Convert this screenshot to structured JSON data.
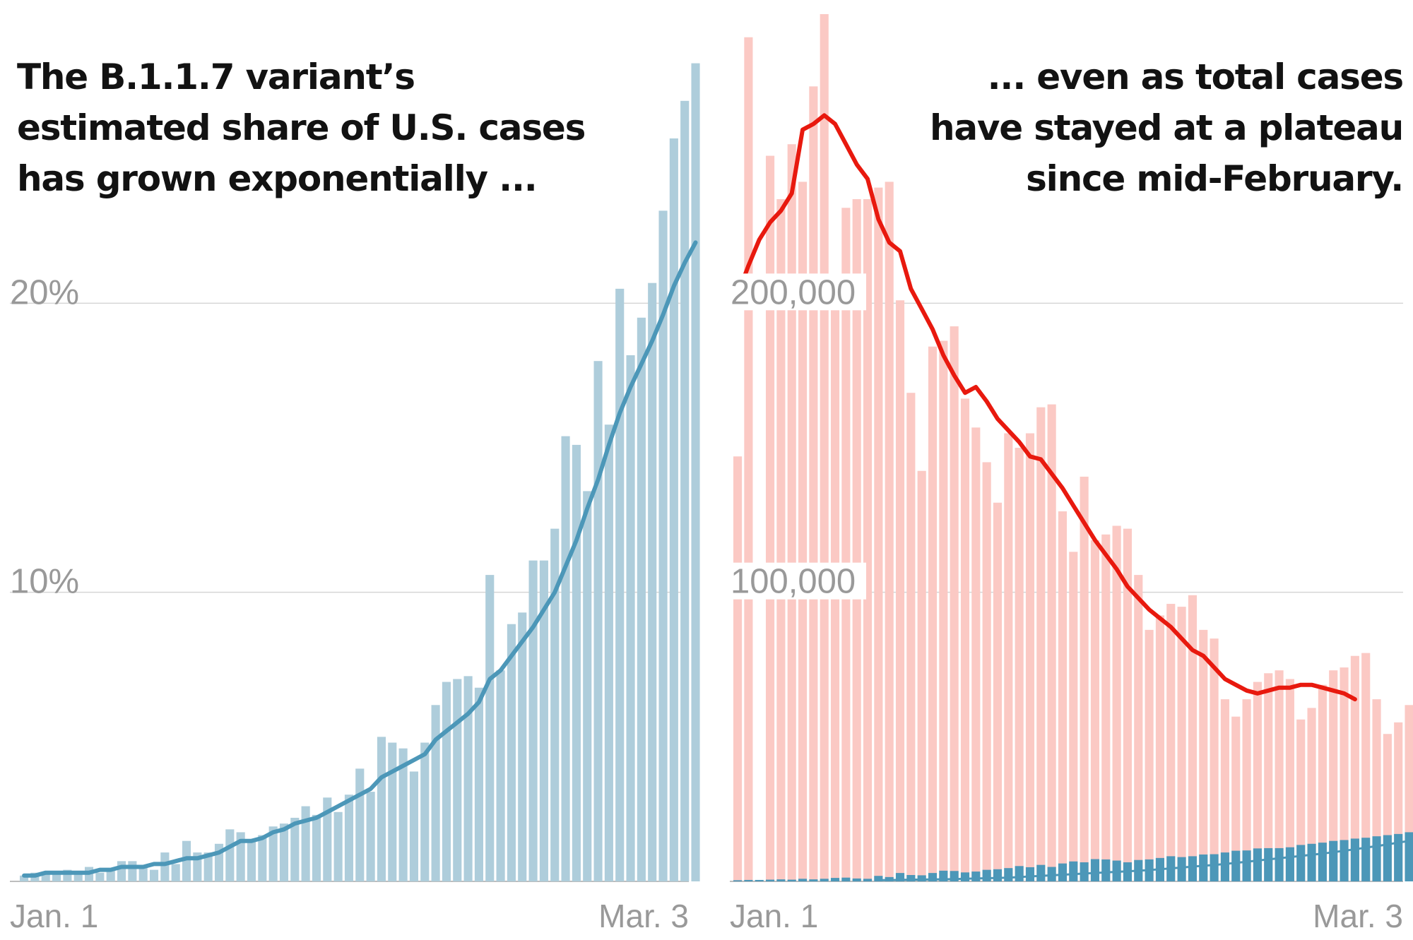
{
  "chart_data": [
    {
      "type": "bar",
      "title": [
        "The B.1.1.7 variant’s",
        "estimated share of U.S. cases",
        "has grown exponentially ..."
      ],
      "y_tick_labels": [
        "10%",
        "20%"
      ],
      "y_ticks": [
        10,
        20
      ],
      "ylim": [
        0,
        30
      ],
      "x_tick_labels": [
        "Jan. 1",
        "Mar. 3"
      ],
      "grid": true,
      "colors": {
        "bars": "#aecddb",
        "line": "#4c97b8"
      },
      "series": [
        {
          "kind": "bar",
          "values": [
            0.2,
            0.3,
            0.3,
            0.3,
            0.4,
            0.3,
            0.5,
            0.3,
            0.4,
            0.7,
            0.7,
            0.5,
            0.4,
            1.0,
            0.6,
            1.4,
            1.0,
            1.0,
            1.3,
            1.8,
            1.7,
            1.4,
            1.6,
            1.9,
            2.0,
            2.2,
            2.6,
            2.3,
            2.9,
            2.4,
            3.0,
            3.9,
            3.1,
            5.0,
            4.8,
            4.6,
            3.8,
            4.8,
            6.1,
            6.9,
            7.0,
            7.1,
            6.7,
            10.6,
            7.3,
            8.9,
            9.3,
            11.1,
            11.1,
            12.2,
            15.4,
            15.1,
            13.5,
            18.0,
            15.8,
            20.5,
            18.2,
            19.5,
            20.7,
            23.2,
            25.7,
            27.0,
            28.3
          ],
          "cap_value": 28.3
        },
        {
          "kind": "line",
          "values": [
            0.2,
            0.2,
            0.3,
            0.3,
            0.3,
            0.3,
            0.3,
            0.4,
            0.4,
            0.5,
            0.5,
            0.5,
            0.6,
            0.6,
            0.7,
            0.8,
            0.8,
            0.9,
            1.0,
            1.2,
            1.4,
            1.4,
            1.5,
            1.7,
            1.8,
            2.0,
            2.1,
            2.2,
            2.4,
            2.6,
            2.8,
            3.0,
            3.2,
            3.6,
            3.8,
            4.0,
            4.2,
            4.4,
            4.9,
            5.2,
            5.5,
            5.8,
            6.2,
            7.0,
            7.3,
            7.8,
            8.3,
            8.8,
            9.4,
            10.0,
            10.9,
            11.8,
            12.9,
            13.9,
            15.1,
            16.2,
            17.1,
            17.9,
            18.7,
            19.6,
            20.6,
            21.4,
            22.1
          ]
        }
      ]
    },
    {
      "type": "bar",
      "title": [
        "... even as total cases",
        "have stayed at a plateau",
        "since mid-February."
      ],
      "y_tick_labels": [
        "100,000",
        "200,000"
      ],
      "y_ticks": [
        100000,
        200000
      ],
      "ylim": [
        0,
        300000
      ],
      "x_tick_labels": [
        "Jan. 1",
        "Mar. 3"
      ],
      "grid": true,
      "colors": {
        "total_bars": "#fbc9c4",
        "average_line": "#e8190e",
        "variant_bars": "#4c97b8"
      },
      "series": [
        {
          "kind": "bar",
          "values": [
            147000,
            292000,
            0,
            251000,
            236000,
            255000,
            242000,
            275000,
            303000,
            210000,
            233000,
            236000,
            236000,
            240000,
            242000,
            201000,
            169000,
            142000,
            185000,
            187000,
            192000,
            167000,
            157000,
            145000,
            131000,
            155000,
            150000,
            155000,
            164000,
            165000,
            128000,
            114000,
            140000,
            118000,
            120000,
            123000,
            122000,
            106000,
            87000,
            92000,
            96000,
            95000,
            99000,
            87000,
            84000,
            63000,
            57000,
            63000,
            69000,
            72000,
            73000,
            70000,
            56000,
            60000,
            68000,
            73000,
            74000,
            78000,
            79000,
            63000,
            51000,
            55000,
            61000,
            62000,
            66000
          ]
        },
        {
          "kind": "line",
          "values": [
            203000,
            213000,
            222000,
            228000,
            232000,
            238000,
            260000,
            262000,
            265000,
            262000,
            255000,
            248000,
            243000,
            229000,
            221000,
            218000,
            205000,
            198000,
            191000,
            182000,
            175000,
            169000,
            171000,
            166000,
            160000,
            156000,
            152000,
            147000,
            146000,
            141000,
            136000,
            130000,
            124000,
            118000,
            113000,
            108000,
            102000,
            98000,
            94000,
            91000,
            88000,
            84000,
            80000,
            78000,
            74000,
            70000,
            68000,
            66000,
            65000,
            66000,
            67000,
            67000,
            68000,
            68000,
            67000,
            66000,
            65000,
            63000
          ]
        },
        {
          "kind": "bar",
          "values": [
            400,
            500,
            500,
            600,
            700,
            600,
            900,
            700,
            900,
            1200,
            1300,
            1000,
            900,
            1900,
            1500,
            2900,
            2200,
            2100,
            2900,
            3700,
            3600,
            3100,
            3400,
            4000,
            4200,
            4600,
            5300,
            4900,
            5700,
            5000,
            6200,
            6900,
            6600,
            7700,
            7600,
            7200,
            6600,
            7400,
            7600,
            8100,
            8700,
            8400,
            8700,
            9300,
            9400,
            10000,
            10600,
            10700,
            11400,
            11500,
            11500,
            11800,
            12600,
            13000,
            13400,
            14000,
            14300,
            14800,
            15100,
            15600,
            16000,
            16400,
            17000
          ]
        },
        {
          "kind": "line",
          "values": [
            400,
            500,
            500,
            600,
            600,
            700,
            700,
            800,
            900,
            1000,
            1100,
            1200,
            1300,
            1500,
            1700,
            1900,
            2100,
            2300,
            2500,
            2700,
            2900,
            3100,
            3300,
            3500,
            3700,
            3900,
            4200,
            4500,
            4800,
            5100,
            5400,
            5700,
            6000,
            6400,
            6800,
            7200,
            7600,
            8000,
            8400,
            8800,
            9200,
            9600,
            10100,
            10600,
            11100,
            11700,
            12200,
            12800,
            13400,
            14000
          ]
        }
      ]
    }
  ]
}
